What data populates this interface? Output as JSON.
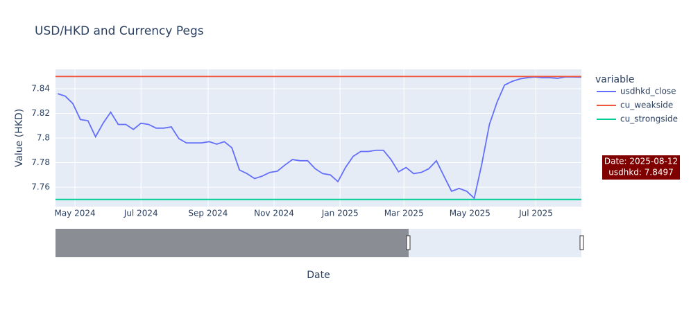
{
  "chart_data": {
    "type": "line",
    "title": "USD/HKD and Currency Pegs",
    "x_label": "Date",
    "y_label": "Value (HKD)",
    "legend_title": "variable",
    "legend_position": "right",
    "grid": true,
    "xlim": [
      "2024-04-13",
      "2025-08-12"
    ],
    "xticks": [
      {
        "value": "2024-05-01",
        "label": "May 2024"
      },
      {
        "value": "2024-07-01",
        "label": "Jul 2024"
      },
      {
        "value": "2024-09-01",
        "label": "Sep 2024"
      },
      {
        "value": "2024-11-01",
        "label": "Nov 2024"
      },
      {
        "value": "2025-01-01",
        "label": "Jan 2025"
      },
      {
        "value": "2025-03-01",
        "label": "Mar 2025"
      },
      {
        "value": "2025-05-01",
        "label": "May 2025"
      },
      {
        "value": "2025-07-01",
        "label": "Jul 2025"
      }
    ],
    "ylim": [
      7.7442,
      7.8558
    ],
    "yticks": [
      7.76,
      7.78,
      7.8,
      7.82,
      7.84
    ],
    "series": [
      {
        "name": "usdhkd_close",
        "color": "#636efa",
        "x": [
          "2024-04-15",
          "2024-04-22",
          "2024-04-29",
          "2024-05-06",
          "2024-05-13",
          "2024-05-20",
          "2024-05-27",
          "2024-06-03",
          "2024-06-10",
          "2024-06-17",
          "2024-06-24",
          "2024-07-01",
          "2024-07-08",
          "2024-07-15",
          "2024-07-22",
          "2024-07-29",
          "2024-08-05",
          "2024-08-12",
          "2024-08-19",
          "2024-08-26",
          "2024-09-02",
          "2024-09-09",
          "2024-09-16",
          "2024-09-23",
          "2024-09-30",
          "2024-10-07",
          "2024-10-14",
          "2024-10-21",
          "2024-10-28",
          "2024-11-04",
          "2024-11-11",
          "2024-11-18",
          "2024-11-25",
          "2024-12-02",
          "2024-12-09",
          "2024-12-16",
          "2024-12-23",
          "2024-12-30",
          "2025-01-06",
          "2025-01-13",
          "2025-01-20",
          "2025-01-27",
          "2025-02-03",
          "2025-02-10",
          "2025-02-17",
          "2025-02-24",
          "2025-03-03",
          "2025-03-10",
          "2025-03-17",
          "2025-03-24",
          "2025-03-31",
          "2025-04-07",
          "2025-04-14",
          "2025-04-21",
          "2025-04-28",
          "2025-05-05",
          "2025-05-12",
          "2025-05-19",
          "2025-05-26",
          "2025-06-02",
          "2025-06-09",
          "2025-06-16",
          "2025-06-23",
          "2025-06-30",
          "2025-07-07",
          "2025-07-14",
          "2025-07-21",
          "2025-07-28",
          "2025-08-04",
          "2025-08-11",
          "2025-08-12"
        ],
        "values": [
          7.836,
          7.834,
          7.828,
          7.815,
          7.814,
          7.801,
          7.812,
          7.821,
          7.811,
          7.811,
          7.807,
          7.812,
          7.811,
          7.808,
          7.808,
          7.809,
          7.7995,
          7.796,
          7.796,
          7.796,
          7.797,
          7.795,
          7.797,
          7.792,
          7.774,
          7.771,
          7.767,
          7.769,
          7.772,
          7.773,
          7.778,
          7.7825,
          7.7815,
          7.7815,
          7.775,
          7.771,
          7.77,
          7.7645,
          7.776,
          7.785,
          7.789,
          7.789,
          7.79,
          7.79,
          7.7825,
          7.7725,
          7.776,
          7.771,
          7.772,
          7.775,
          7.7815,
          7.769,
          7.7567,
          7.759,
          7.7567,
          7.751,
          7.779,
          7.811,
          7.829,
          7.843,
          7.846,
          7.848,
          7.849,
          7.8496,
          7.849,
          7.849,
          7.8485,
          7.8496,
          7.8496,
          7.8495,
          7.8497
        ]
      },
      {
        "name": "cu_weakside",
        "color": "#ef553b",
        "x": [
          "2024-04-13",
          "2025-08-12"
        ],
        "values": [
          7.85,
          7.85
        ]
      },
      {
        "name": "cu_strongside",
        "color": "#00cc96",
        "x": [
          "2024-04-13",
          "2025-08-12"
        ],
        "values": [
          7.75,
          7.75
        ]
      }
    ],
    "hover": {
      "lines": [
        "Date: 2025-08-12",
        "usdhkd: 7.8497"
      ],
      "color": "#800000"
    }
  }
}
